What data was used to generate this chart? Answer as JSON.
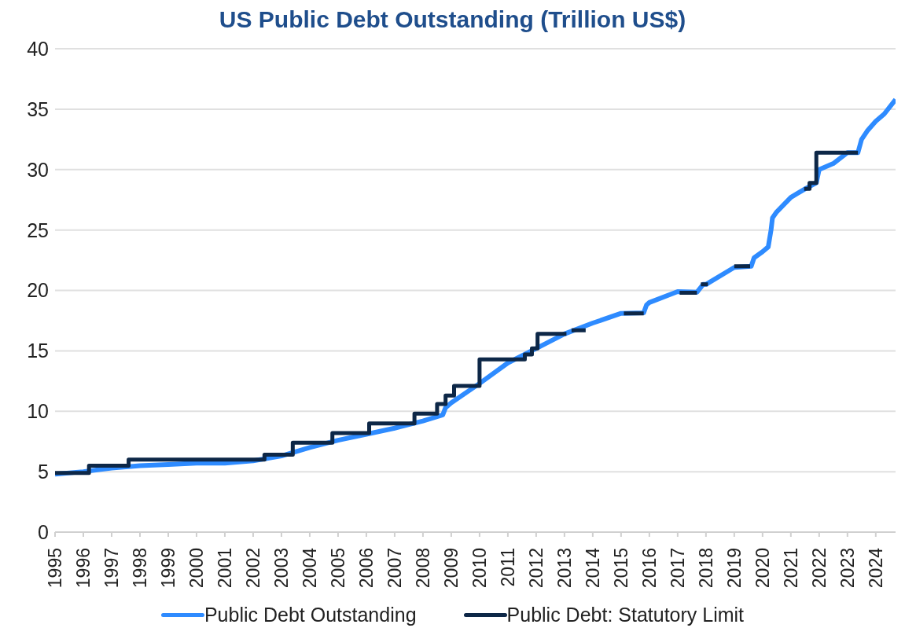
{
  "chart_data": {
    "type": "line",
    "title": "US Public Debt Outstanding (Trillion US$)",
    "xlim": [
      1995,
      2024.7
    ],
    "xticks": [
      1995,
      1996,
      1997,
      1998,
      1999,
      2000,
      2001,
      2002,
      2003,
      2004,
      2005,
      2006,
      2007,
      2008,
      2009,
      2010,
      2011,
      2012,
      2013,
      2014,
      2015,
      2016,
      2017,
      2018,
      2019,
      2020,
      2021,
      2022,
      2023,
      2024
    ],
    "ylim": [
      0,
      40
    ],
    "yticks": [
      0,
      5,
      10,
      15,
      20,
      25,
      30,
      35,
      40
    ],
    "grid": "y",
    "legend": "bottom",
    "marker": "none",
    "series": [
      {
        "name": "Public Debt Outstanding",
        "color": "#2e8bff",
        "x": [
          1995,
          1996,
          1997,
          1998,
          1999,
          2000,
          2001,
          2002,
          2003,
          2004,
          2005,
          2006,
          2007,
          2008,
          2008.7,
          2008.8,
          2009,
          2010,
          2011,
          2012,
          2013,
          2014,
          2015,
          2015.8,
          2015.9,
          2016,
          2017,
          2017.68,
          2017.9,
          2018,
          2019,
          2019.6,
          2019.7,
          2020,
          2020.2,
          2020.3,
          2020.35,
          2020.5,
          2021,
          2021.5,
          2021.9,
          2022,
          2022.5,
          2023,
          2023.37,
          2023.5,
          2023.7,
          2024,
          2024.3,
          2024.7
        ],
        "values": [
          4.8,
          5.0,
          5.3,
          5.5,
          5.6,
          5.7,
          5.7,
          5.9,
          6.3,
          7.0,
          7.6,
          8.1,
          8.6,
          9.2,
          9.7,
          10.3,
          10.7,
          12.3,
          14.0,
          15.2,
          16.4,
          17.3,
          18.1,
          18.15,
          18.8,
          19.0,
          19.9,
          19.85,
          20.5,
          20.5,
          21.9,
          22.0,
          22.7,
          23.2,
          23.6,
          25.0,
          26.0,
          26.5,
          27.7,
          28.4,
          28.9,
          30.0,
          30.5,
          31.4,
          31.4,
          32.5,
          33.2,
          34.0,
          34.6,
          35.8
        ]
      },
      {
        "name": "Public Debt: Statutory Limit",
        "color": "#0d2747",
        "type": "step",
        "x": [
          1995,
          1996.2,
          1997.6,
          2002.4,
          2003.4,
          2004.8,
          2006.1,
          2007.7,
          2008.5,
          2008.8,
          2009.1,
          2010.0,
          2011.6,
          2011.85,
          2012.05,
          2013.07,
          2013.15,
          2013.25,
          2013.75,
          2014,
          2015.1,
          2015.8,
          2016,
          2017.07,
          2017.68,
          2017.75,
          2017.82,
          2018.07,
          2018.5,
          2019.0,
          2019.56,
          2020,
          2021.47,
          2021.66,
          2021.9,
          2023.37
        ],
        "values": [
          4.9,
          5.5,
          6.0,
          6.4,
          7.4,
          8.2,
          9.0,
          9.8,
          10.6,
          11.3,
          12.1,
          14.3,
          14.7,
          15.2,
          16.4,
          16.4,
          null,
          16.7,
          16.7,
          null,
          18.1,
          18.1,
          null,
          19.8,
          19.8,
          null,
          20.5,
          20.5,
          null,
          22.0,
          22.0,
          null,
          28.4,
          28.9,
          31.4,
          31.4
        ]
      }
    ]
  }
}
